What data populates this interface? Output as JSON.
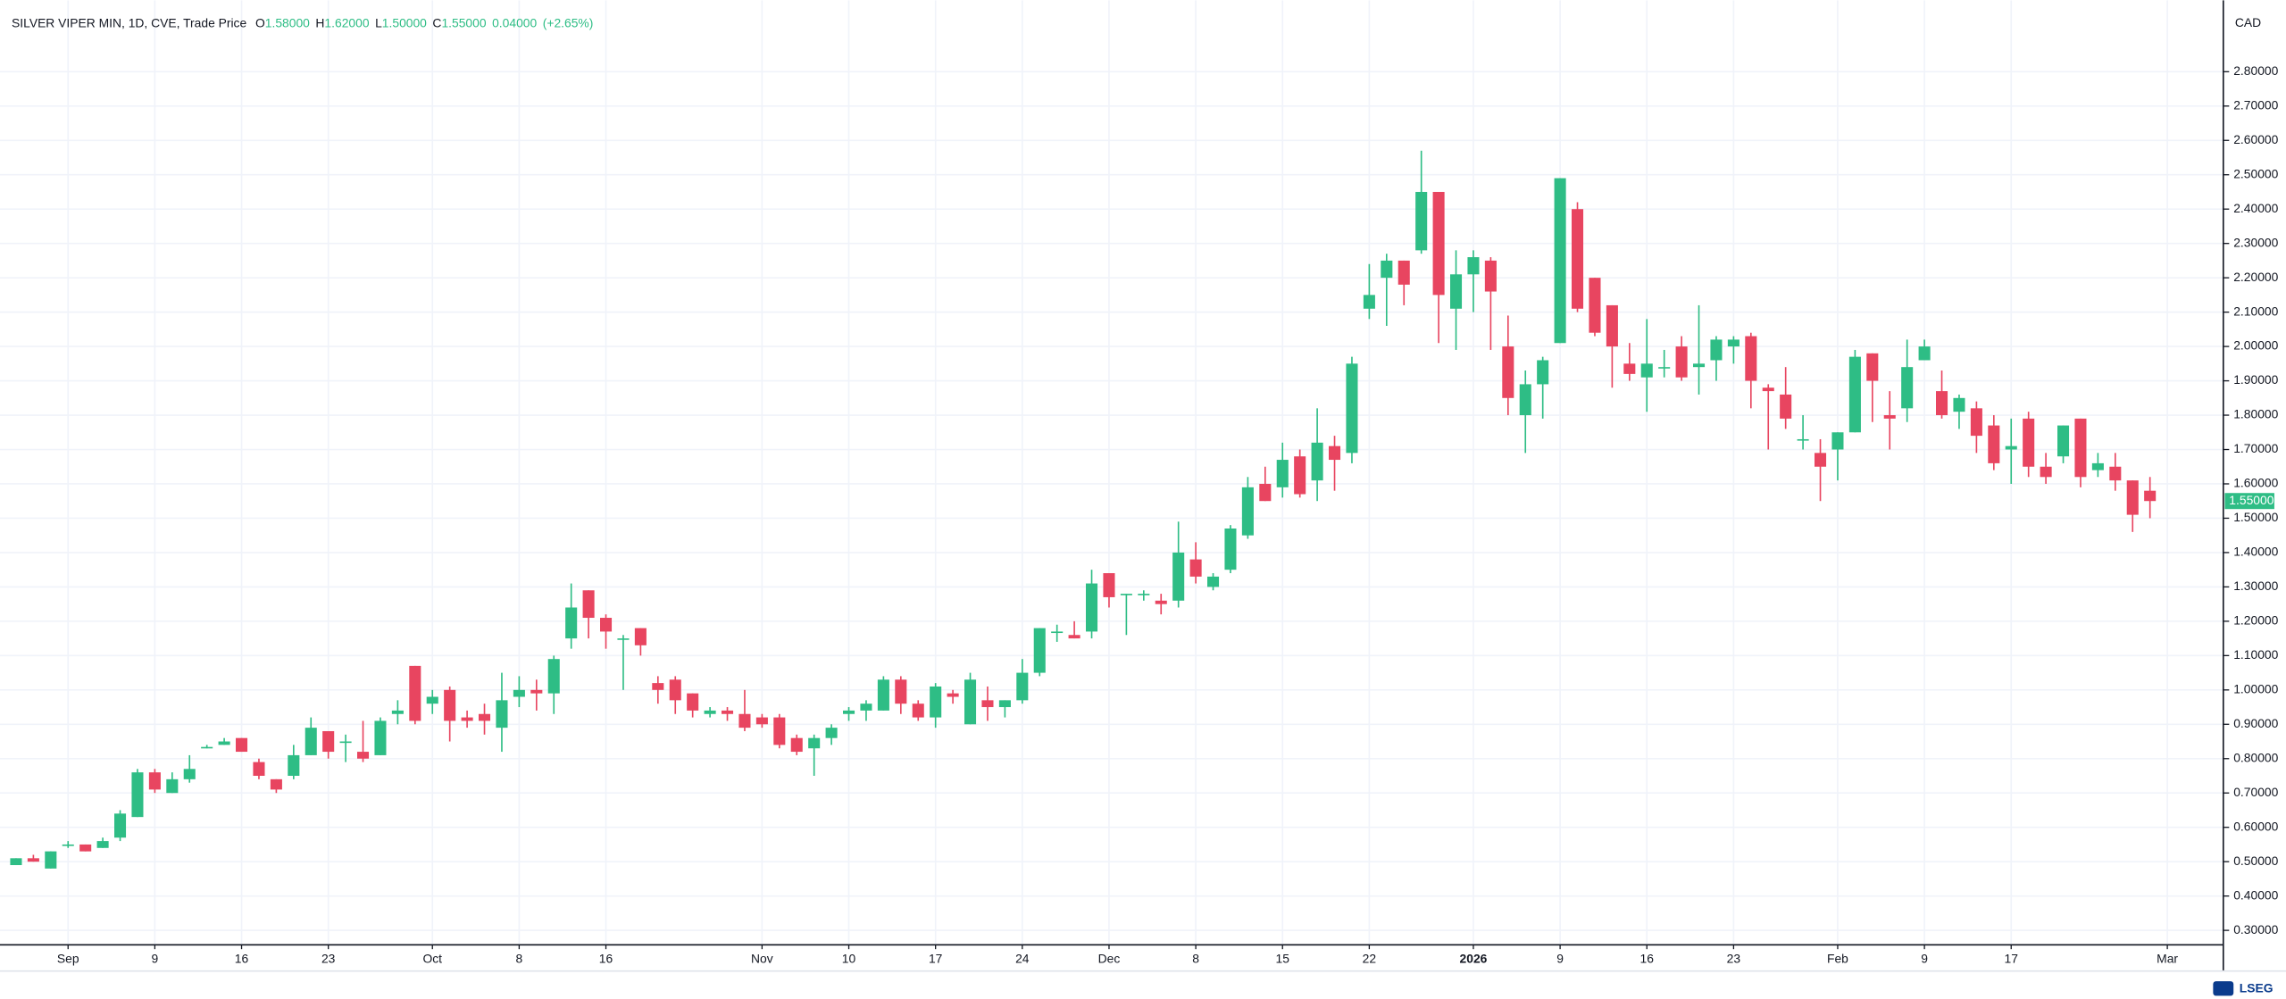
{
  "chart_data": {
    "type": "candlestick",
    "title": "SILVER VIPER MIN, 1D, CVE, Trade Price",
    "ohlc_header": {
      "labels": [
        "O",
        "H",
        "L",
        "C"
      ],
      "values": [
        "1.58000",
        "1.62000",
        "1.50000",
        "1.55000"
      ],
      "change": "0.04000",
      "change_pct": "(+2.65%)"
    },
    "currency": "CAD",
    "last_price_label": "1.55000",
    "logo": "LSEG",
    "up_color": "#2ebd85",
    "down_color": "#e84560",
    "grid": true,
    "categories": [
      null,
      null,
      null,
      "Sep",
      null,
      null,
      null,
      null,
      "9",
      null,
      null,
      null,
      null,
      "16",
      null,
      null,
      null,
      null,
      "23",
      null,
      null,
      null,
      null,
      null,
      "Oct",
      null,
      null,
      null,
      null,
      "8",
      null,
      null,
      null,
      null,
      "16",
      null,
      null,
      null,
      null,
      null,
      null,
      null,
      null,
      "Nov",
      null,
      null,
      null,
      null,
      "10",
      null,
      null,
      null,
      null,
      "17",
      null,
      null,
      null,
      null,
      "24",
      null,
      null,
      null,
      null,
      "Dec",
      null,
      null,
      null,
      null,
      "8",
      null,
      null,
      null,
      null,
      "15",
      null,
      null,
      null,
      null,
      "22",
      null,
      null,
      null,
      null,
      null,
      "2026",
      null,
      null,
      null,
      null,
      "9",
      null,
      null,
      null,
      null,
      "16",
      null,
      null,
      null,
      null,
      "23",
      null,
      null,
      null,
      null,
      null,
      "Feb",
      null,
      null,
      null,
      null,
      "9",
      null,
      null,
      null,
      null,
      "17",
      null,
      null,
      null,
      null,
      null,
      null,
      null,
      null,
      "Mar"
    ],
    "open": [
      0.49,
      0.51,
      0.48,
      0.55,
      0.55,
      0.54,
      0.57,
      0.63,
      0.76,
      0.7,
      0.74,
      0.83,
      0.84,
      0.86,
      0.79,
      0.74,
      0.75,
      0.81,
      0.88,
      0.85,
      0.82,
      0.81,
      0.93,
      1.07,
      0.96,
      1.0,
      0.92,
      0.93,
      0.89,
      0.98,
      1.0,
      0.99,
      1.15,
      1.29,
      1.21,
      1.15,
      1.18,
      1.02,
      1.03,
      0.99,
      0.93,
      0.94,
      0.93,
      0.92,
      0.92,
      0.86,
      0.83,
      0.86,
      0.93,
      0.94,
      0.94,
      1.03,
      0.96,
      0.92,
      0.99,
      0.9,
      0.97,
      0.95,
      0.97,
      1.05,
      1.17,
      1.16,
      1.17,
      1.34,
      1.28,
      1.28,
      1.26,
      1.26,
      1.38,
      1.3,
      1.35,
      1.45,
      1.6,
      1.59,
      1.68,
      1.61,
      1.71,
      1.69,
      2.11,
      2.2,
      2.25,
      2.28,
      2.45,
      2.11,
      2.21,
      2.25,
      2.0,
      1.8,
      1.89,
      2.01,
      2.4,
      2.2,
      2.12,
      1.95,
      1.91,
      1.94,
      2.0,
      1.94,
      1.96,
      2.0,
      2.03,
      1.88,
      1.86,
      1.73,
      1.69,
      1.7,
      1.75,
      1.98,
      1.8,
      1.82,
      1.96,
      1.87,
      1.81,
      1.82,
      1.77,
      1.7,
      1.79,
      1.65,
      1.68,
      1.79,
      1.64,
      1.65,
      1.61,
      1.58,
      null
    ],
    "high": [
      0.51,
      0.52,
      0.53,
      0.56,
      0.55,
      0.57,
      0.65,
      0.77,
      0.77,
      0.76,
      0.81,
      0.84,
      0.86,
      0.86,
      0.8,
      0.74,
      0.84,
      0.92,
      0.88,
      0.87,
      0.91,
      0.92,
      0.97,
      1.07,
      1.0,
      1.01,
      0.94,
      0.96,
      1.05,
      1.04,
      1.03,
      1.1,
      1.31,
      1.29,
      1.22,
      1.16,
      1.18,
      1.04,
      1.04,
      0.99,
      0.95,
      0.95,
      1.0,
      0.93,
      0.93,
      0.87,
      0.87,
      0.9,
      0.95,
      0.97,
      1.04,
      1.04,
      0.97,
      1.02,
      1.0,
      1.05,
      1.01,
      0.97,
      1.09,
      1.18,
      1.19,
      1.2,
      1.35,
      1.34,
      1.28,
      1.29,
      1.28,
      1.49,
      1.43,
      1.34,
      1.48,
      1.62,
      1.65,
      1.72,
      1.7,
      1.82,
      1.74,
      1.97,
      2.24,
      2.27,
      2.25,
      2.57,
      2.45,
      2.28,
      2.28,
      2.26,
      2.09,
      1.93,
      1.97,
      2.49,
      2.42,
      2.2,
      2.12,
      2.01,
      2.08,
      1.99,
      2.03,
      2.12,
      2.03,
      2.03,
      2.04,
      1.89,
      1.94,
      1.8,
      1.73,
      1.75,
      1.99,
      1.98,
      1.87,
      2.02,
      2.02,
      1.93,
      1.86,
      1.84,
      1.8,
      1.79,
      1.81,
      1.69,
      1.77,
      1.79,
      1.69,
      1.69,
      1.61,
      1.62,
      null
    ],
    "low": [
      0.49,
      0.5,
      0.48,
      0.54,
      0.53,
      0.54,
      0.56,
      0.63,
      0.7,
      0.7,
      0.73,
      0.83,
      0.84,
      0.82,
      0.74,
      0.7,
      0.74,
      0.81,
      0.8,
      0.79,
      0.79,
      0.81,
      0.9,
      0.9,
      0.93,
      0.85,
      0.89,
      0.87,
      0.82,
      0.95,
      0.94,
      0.93,
      1.12,
      1.15,
      1.12,
      1.0,
      1.1,
      0.96,
      0.93,
      0.92,
      0.92,
      0.91,
      0.88,
      0.89,
      0.83,
      0.81,
      0.75,
      0.84,
      0.91,
      0.91,
      0.94,
      0.93,
      0.91,
      0.89,
      0.96,
      0.9,
      0.91,
      0.92,
      0.96,
      1.04,
      1.14,
      1.15,
      1.15,
      1.24,
      1.16,
      1.26,
      1.22,
      1.24,
      1.31,
      1.29,
      1.34,
      1.44,
      1.55,
      1.56,
      1.56,
      1.55,
      1.58,
      1.66,
      2.08,
      2.06,
      2.12,
      2.27,
      2.01,
      1.99,
      2.1,
      1.99,
      1.8,
      1.69,
      1.79,
      2.01,
      2.1,
      2.03,
      1.88,
      1.9,
      1.81,
      1.91,
      1.9,
      1.86,
      1.9,
      1.95,
      1.82,
      1.7,
      1.76,
      1.7,
      1.55,
      1.61,
      1.75,
      1.78,
      1.7,
      1.78,
      1.96,
      1.79,
      1.76,
      1.69,
      1.64,
      1.6,
      1.62,
      1.6,
      1.66,
      1.59,
      1.62,
      1.58,
      1.46,
      1.5,
      null
    ],
    "close": [
      0.51,
      0.5,
      0.53,
      0.55,
      0.53,
      0.56,
      0.64,
      0.76,
      0.71,
      0.74,
      0.77,
      0.834,
      0.85,
      0.82,
      0.75,
      0.71,
      0.81,
      0.89,
      0.82,
      0.85,
      0.8,
      0.91,
      0.94,
      0.91,
      0.98,
      0.91,
      0.91,
      0.91,
      0.97,
      1.0,
      0.99,
      1.09,
      1.24,
      1.21,
      1.17,
      1.15,
      1.13,
      1.0,
      0.97,
      0.94,
      0.94,
      0.93,
      0.89,
      0.9,
      0.84,
      0.82,
      0.86,
      0.89,
      0.94,
      0.96,
      1.03,
      0.96,
      0.92,
      1.01,
      0.98,
      1.03,
      0.95,
      0.97,
      1.05,
      1.18,
      1.17,
      1.15,
      1.31,
      1.27,
      1.28,
      1.28,
      1.25,
      1.4,
      1.33,
      1.33,
      1.47,
      1.59,
      1.55,
      1.67,
      1.57,
      1.72,
      1.67,
      1.95,
      2.15,
      2.25,
      2.18,
      2.45,
      2.15,
      2.21,
      2.26,
      2.16,
      1.85,
      1.89,
      1.96,
      2.49,
      2.11,
      2.04,
      2.0,
      1.92,
      1.95,
      1.94,
      1.91,
      1.95,
      2.02,
      2.02,
      1.9,
      1.87,
      1.79,
      1.73,
      1.65,
      1.75,
      1.97,
      1.9,
      1.79,
      1.94,
      2.0,
      1.8,
      1.85,
      1.74,
      1.66,
      1.71,
      1.65,
      1.62,
      1.77,
      1.62,
      1.66,
      1.61,
      1.51,
      1.55,
      null
    ],
    "ylim": [
      0.258,
      2.974
    ],
    "yticks": [
      {
        "value": 0.3,
        "label": "0.30000"
      },
      {
        "value": 0.4,
        "label": "0.40000"
      },
      {
        "value": 0.5,
        "label": "0.50000"
      },
      {
        "value": 0.6,
        "label": "0.60000"
      },
      {
        "value": 0.7,
        "label": "0.70000"
      },
      {
        "value": 0.8,
        "label": "0.80000"
      },
      {
        "value": 0.9,
        "label": "0.90000"
      },
      {
        "value": 1.0,
        "label": "1.00000"
      },
      {
        "value": 1.1,
        "label": "1.10000"
      },
      {
        "value": 1.2,
        "label": "1.20000"
      },
      {
        "value": 1.3,
        "label": "1.30000"
      },
      {
        "value": 1.4,
        "label": "1.40000"
      },
      {
        "value": 1.5,
        "label": "1.50000"
      },
      {
        "value": 1.6,
        "label": "1.60000"
      },
      {
        "value": 1.7,
        "label": "1.70000"
      },
      {
        "value": 1.8,
        "label": "1.80000"
      },
      {
        "value": 1.9,
        "label": "1.90000"
      },
      {
        "value": 2.0,
        "label": "2.00000"
      },
      {
        "value": 2.1,
        "label": "2.10000"
      },
      {
        "value": 2.2,
        "label": "2.20000"
      },
      {
        "value": 2.3,
        "label": "2.30000"
      },
      {
        "value": 2.4,
        "label": "2.40000"
      },
      {
        "value": 2.5,
        "label": "2.50000"
      },
      {
        "value": 2.6,
        "label": "2.60000"
      },
      {
        "value": 2.7,
        "label": "2.70000"
      },
      {
        "value": 2.8,
        "label": "2.80000"
      }
    ]
  }
}
